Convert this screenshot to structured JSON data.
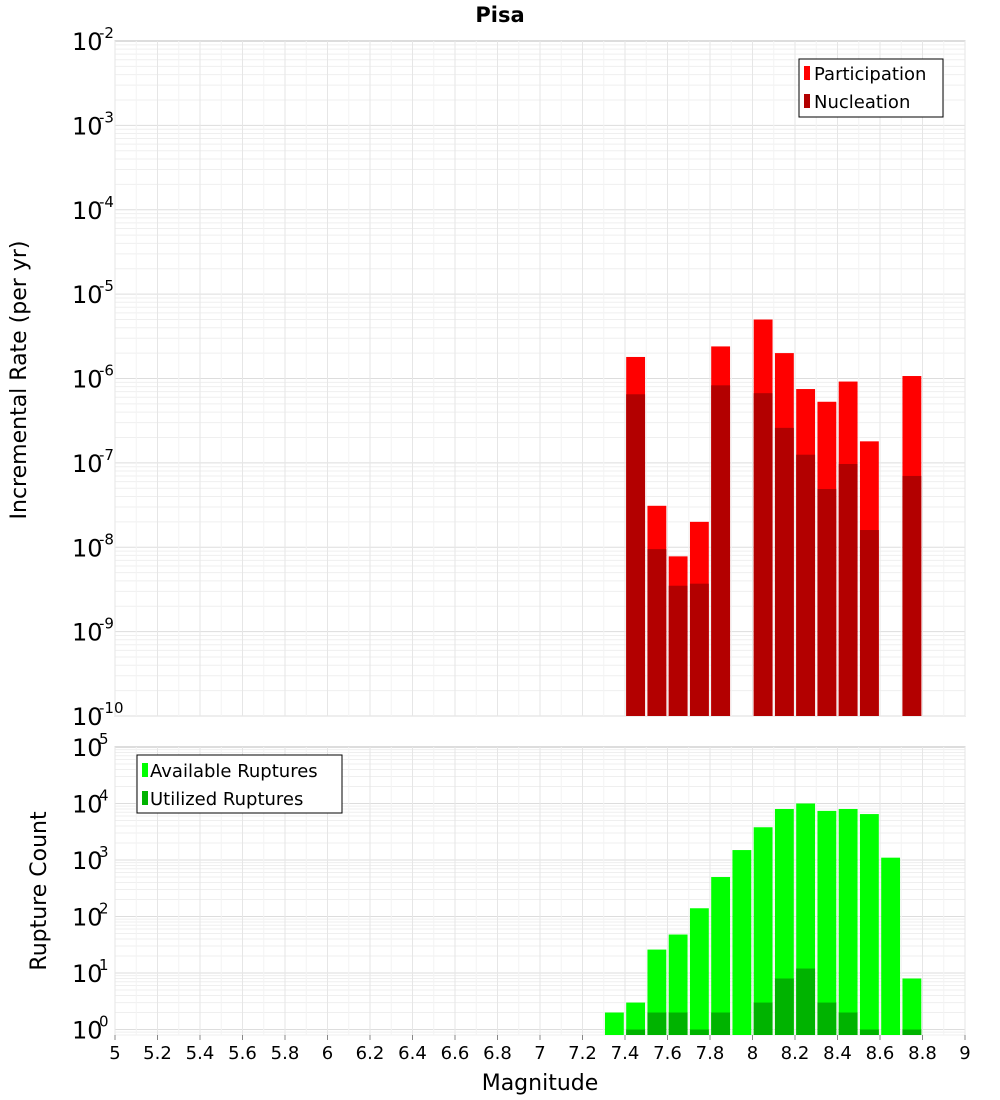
{
  "chart_data": [
    {
      "type": "bar",
      "title": "Pisa",
      "xlabel": "",
      "ylabel": "Incremental Rate (per yr)",
      "xlim": [
        5,
        9
      ],
      "ylim": [
        1e-10,
        0.01
      ],
      "yscale": "log",
      "legend_position": "top-right",
      "grid": true,
      "y_tick_exponents": [
        "-10",
        "-9",
        "-8",
        "-7",
        "-6",
        "-5",
        "-4",
        "-3",
        "-2"
      ],
      "y_tick_base": "10",
      "series": [
        {
          "name": "Participation",
          "color": "#ff0000",
          "x": [
            7.45,
            7.55,
            7.65,
            7.75,
            7.85,
            8.05,
            8.15,
            8.25,
            8.35,
            8.45,
            8.55,
            8.75
          ],
          "values": [
            1.8e-06,
            3.1e-08,
            7.8e-09,
            2e-08,
            2.4e-06,
            5e-06,
            2e-06,
            7.5e-07,
            5.3e-07,
            9.2e-07,
            1.8e-07,
            1.07e-06
          ]
        },
        {
          "name": "Nucleation",
          "color": "#b30000",
          "x": [
            7.45,
            7.55,
            7.65,
            7.75,
            7.85,
            8.05,
            8.15,
            8.25,
            8.35,
            8.45,
            8.55,
            8.75
          ],
          "values": [
            6.5e-07,
            9.5e-09,
            3.5e-09,
            3.7e-09,
            8.3e-07,
            6.7e-07,
            2.6e-07,
            1.25e-07,
            4.9e-08,
            9.7e-08,
            1.6e-08,
            7e-08
          ]
        }
      ]
    },
    {
      "type": "bar",
      "title": "",
      "xlabel": "Magnitude",
      "ylabel": "Rupture Count",
      "xlim": [
        5,
        9
      ],
      "ylim": [
        0.8,
        100000.0
      ],
      "yscale": "log",
      "legend_position": "top-left",
      "grid": true,
      "x_ticks": [
        "5",
        "5.2",
        "5.4",
        "5.6",
        "5.8",
        "6",
        "6.2",
        "6.4",
        "6.6",
        "6.8",
        "7",
        "7.2",
        "7.4",
        "7.6",
        "7.8",
        "8",
        "8.2",
        "8.4",
        "8.6",
        "8.8",
        "9"
      ],
      "y_tick_exponents": [
        "0",
        "1",
        "2",
        "3",
        "4",
        "5"
      ],
      "y_tick_base": "10",
      "series": [
        {
          "name": "Available Ruptures",
          "color": "#00ff00",
          "x": [
            7.35,
            7.45,
            7.55,
            7.65,
            7.75,
            7.85,
            7.95,
            8.05,
            8.15,
            8.25,
            8.35,
            8.45,
            8.55,
            8.65,
            8.75
          ],
          "values": [
            2,
            3,
            26,
            48,
            140,
            500,
            1500,
            3800,
            8000,
            10000,
            7400,
            8000,
            6500,
            1100,
            8
          ]
        },
        {
          "name": "Utilized Ruptures",
          "color": "#00b300",
          "x": [
            7.45,
            7.55,
            7.65,
            7.75,
            7.85,
            8.05,
            8.15,
            8.25,
            8.35,
            8.45,
            8.55,
            8.75
          ],
          "values": [
            1,
            2,
            2,
            1,
            2,
            3,
            8,
            12,
            3,
            2,
            1,
            1
          ]
        }
      ]
    }
  ]
}
